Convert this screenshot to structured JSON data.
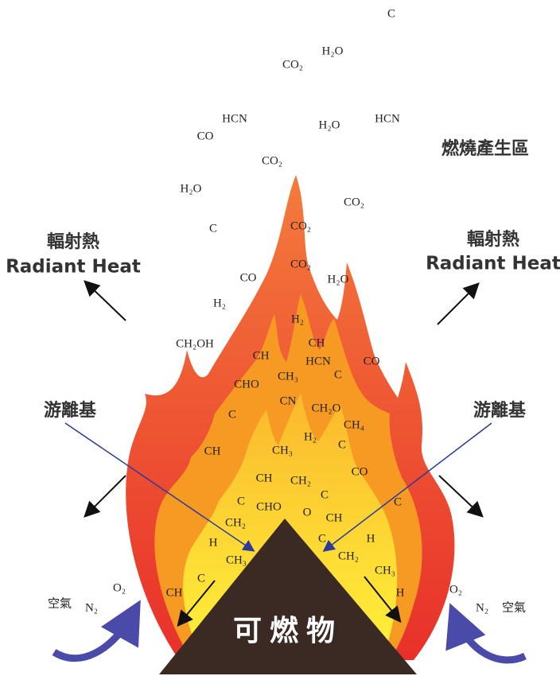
{
  "zone_label": "燃燒產生區",
  "radiant_left": {
    "zh": "輻射熱",
    "en": "Radiant Heat"
  },
  "radiant_right": {
    "zh": "輻射熱",
    "en": "Radiant Heat"
  },
  "radical_left": "游離基",
  "radical_right": "游離基",
  "fuel": "可燃物",
  "molecules": [
    "C",
    "H₂O",
    "CO₂",
    "HCN",
    "CO",
    "H₂O",
    "HCN",
    "CO₂",
    "H₂O",
    "CO₂",
    "C",
    "CO₂",
    "CO₂",
    "CO",
    "H₂O",
    "H₂",
    "H₂",
    "CH₂OH",
    "CH",
    "CH",
    "HCN",
    "CO",
    "CH₃",
    "C",
    "CHO",
    "CN",
    "CH₂O",
    "CH₄",
    "C",
    "H₂",
    "C",
    "CH",
    "CH₃",
    "CO",
    "CH",
    "CH₂",
    "C",
    "C",
    "C",
    "CHO",
    "O",
    "CH",
    "CH₂",
    "H",
    "C",
    "CH₂",
    "H",
    "CH₃",
    "CH₃",
    "C",
    "H",
    "CH",
    "O₂",
    "N₂",
    "空氣",
    "O₂",
    "N₂",
    "空氣"
  ]
}
